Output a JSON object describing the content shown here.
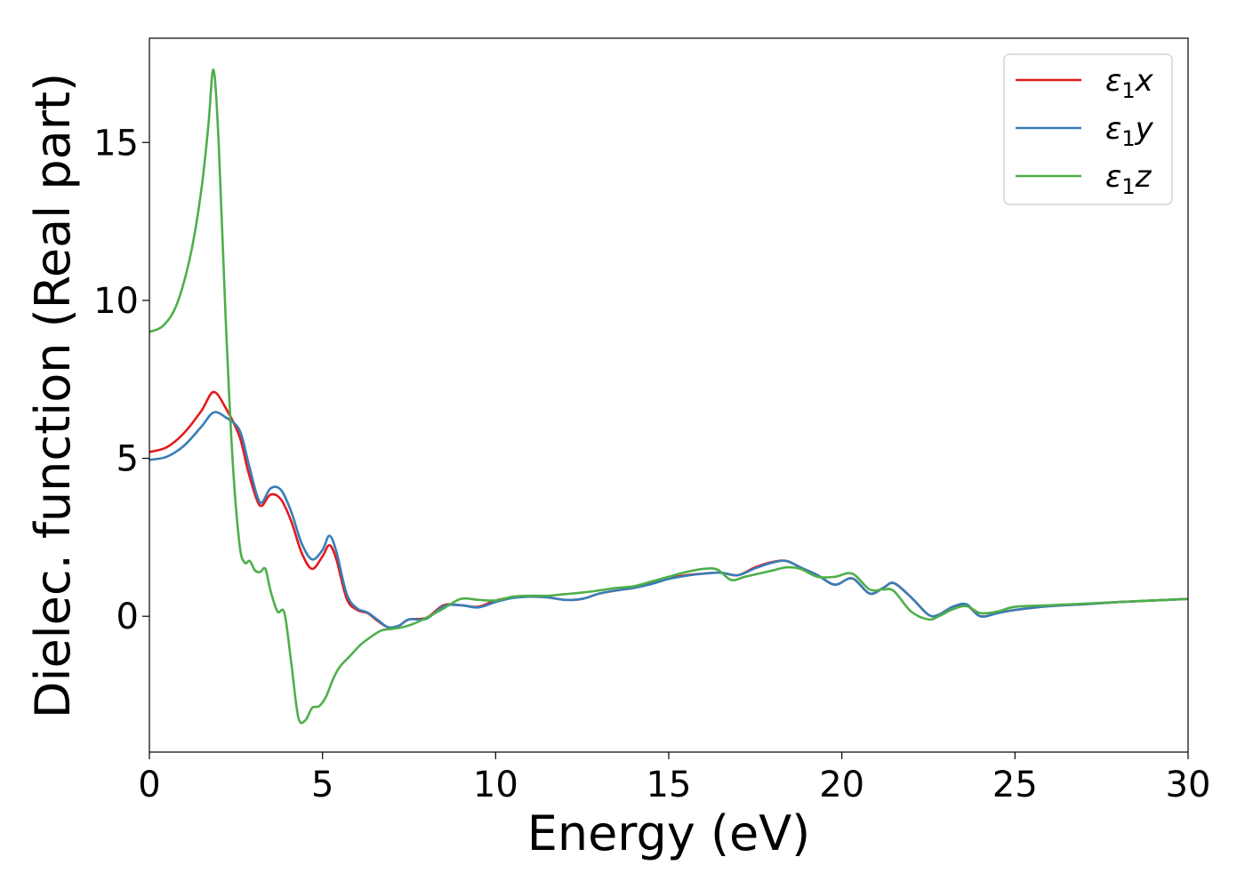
{
  "chart_data": {
    "type": "line",
    "xlabel": "Energy (eV)",
    "ylabel": "Dielec. function (Real part)",
    "xlim": [
      0,
      30
    ],
    "ylim": [
      -4.3,
      18.3
    ],
    "xticks": [
      0,
      5,
      10,
      15,
      20,
      25,
      30
    ],
    "yticks": [
      0,
      5,
      10,
      15
    ],
    "grid": false,
    "legend_position": "top-right",
    "series": [
      {
        "name": "ε₁x",
        "legend_main": "ε",
        "legend_sub": "1",
        "legend_suffix": "x",
        "color": "#e41a1c",
        "x": [
          0,
          0.5,
          1.0,
          1.5,
          1.85,
          2.2,
          2.6,
          2.85,
          3.1,
          3.25,
          3.5,
          3.8,
          4.1,
          4.4,
          4.7,
          5.0,
          5.2,
          5.4,
          5.7,
          6.0,
          6.3,
          6.6,
          6.9,
          7.2,
          7.5,
          8.0,
          8.5,
          9.0,
          9.5,
          10.0,
          10.5,
          11.0,
          11.5,
          12.0,
          12.5,
          13.0,
          13.5,
          14.0,
          14.5,
          15.0,
          15.5,
          16.0,
          16.5,
          17.0,
          17.5,
          18.0,
          18.4,
          18.8,
          19.3,
          19.8,
          20.3,
          20.8,
          21.2,
          21.5,
          22.0,
          22.5,
          22.8,
          23.2,
          23.6,
          24.0,
          24.5,
          25.0,
          26.0,
          27.0,
          28.0,
          29.0,
          30.0
        ],
        "values": [
          5.2,
          5.35,
          5.8,
          6.5,
          7.1,
          6.6,
          5.7,
          4.6,
          3.7,
          3.5,
          3.85,
          3.7,
          3.0,
          2.0,
          1.5,
          1.9,
          2.25,
          1.8,
          0.55,
          0.2,
          0.1,
          -0.15,
          -0.35,
          -0.3,
          -0.1,
          -0.05,
          0.35,
          0.35,
          0.3,
          0.5,
          0.6,
          0.62,
          0.6,
          0.52,
          0.55,
          0.72,
          0.82,
          0.9,
          1.05,
          1.2,
          1.3,
          1.35,
          1.38,
          1.3,
          1.55,
          1.72,
          1.75,
          1.55,
          1.3,
          1.0,
          1.2,
          0.72,
          0.9,
          1.05,
          0.6,
          0.05,
          0.05,
          0.3,
          0.35,
          0.0,
          0.1,
          0.2,
          0.32,
          0.38,
          0.45,
          0.5,
          0.55
        ]
      },
      {
        "name": "ε₁y",
        "legend_main": "ε",
        "legend_sub": "1",
        "legend_suffix": "y",
        "color": "#377eb8",
        "x": [
          0,
          0.5,
          1.0,
          1.5,
          1.85,
          2.2,
          2.6,
          2.85,
          3.1,
          3.25,
          3.5,
          3.8,
          4.1,
          4.4,
          4.7,
          5.0,
          5.2,
          5.4,
          5.7,
          6.0,
          6.3,
          6.6,
          6.9,
          7.2,
          7.5,
          8.0,
          8.5,
          9.0,
          9.5,
          10.0,
          10.5,
          11.0,
          11.5,
          12.0,
          12.5,
          13.0,
          13.5,
          14.0,
          14.5,
          15.0,
          15.5,
          16.0,
          16.5,
          17.0,
          17.5,
          18.0,
          18.4,
          18.8,
          19.3,
          19.8,
          20.3,
          20.8,
          21.2,
          21.5,
          22.0,
          22.5,
          22.8,
          23.2,
          23.6,
          24.0,
          24.5,
          25.0,
          26.0,
          27.0,
          28.0,
          29.0,
          30.0
        ],
        "values": [
          4.95,
          5.05,
          5.4,
          6.0,
          6.45,
          6.3,
          5.9,
          4.9,
          3.85,
          3.6,
          4.05,
          4.0,
          3.3,
          2.3,
          1.8,
          2.1,
          2.55,
          2.05,
          0.7,
          0.25,
          0.12,
          -0.12,
          -0.35,
          -0.3,
          -0.1,
          -0.08,
          0.32,
          0.35,
          0.28,
          0.45,
          0.58,
          0.62,
          0.6,
          0.52,
          0.55,
          0.72,
          0.82,
          0.9,
          1.02,
          1.18,
          1.28,
          1.35,
          1.38,
          1.3,
          1.52,
          1.7,
          1.75,
          1.55,
          1.3,
          1.0,
          1.2,
          0.72,
          0.9,
          1.05,
          0.6,
          0.05,
          0.05,
          0.3,
          0.38,
          0.0,
          0.1,
          0.2,
          0.32,
          0.38,
          0.45,
          0.5,
          0.55
        ]
      },
      {
        "name": "ε₁z",
        "legend_main": "ε",
        "legend_sub": "1",
        "legend_suffix": "z",
        "color": "#4daf4a",
        "x": [
          0,
          0.4,
          0.8,
          1.2,
          1.5,
          1.7,
          1.85,
          2.0,
          2.2,
          2.4,
          2.6,
          2.75,
          2.9,
          3.05,
          3.2,
          3.35,
          3.5,
          3.7,
          3.9,
          4.1,
          4.3,
          4.5,
          4.7,
          4.9,
          5.1,
          5.3,
          5.5,
          5.8,
          6.1,
          6.4,
          6.7,
          7.0,
          7.3,
          7.6,
          8.0,
          8.5,
          9.0,
          9.5,
          10.0,
          10.5,
          11.0,
          11.5,
          12.0,
          12.5,
          13.0,
          13.5,
          14.0,
          14.5,
          15.0,
          15.5,
          16.0,
          16.4,
          16.8,
          17.2,
          17.6,
          18.0,
          18.4,
          18.8,
          19.3,
          19.8,
          20.3,
          20.8,
          21.2,
          21.5,
          22.0,
          22.5,
          22.8,
          23.2,
          23.6,
          24.0,
          24.5,
          25.0,
          26.0,
          27.0,
          28.0,
          29.0,
          30.0
        ],
        "values": [
          9.0,
          9.2,
          9.9,
          11.5,
          13.5,
          15.5,
          17.3,
          15.0,
          9.5,
          5.0,
          2.3,
          1.7,
          1.75,
          1.45,
          1.4,
          1.5,
          0.8,
          0.15,
          0.1,
          -1.5,
          -3.2,
          -3.3,
          -2.9,
          -2.85,
          -2.55,
          -2.0,
          -1.6,
          -1.25,
          -0.9,
          -0.65,
          -0.45,
          -0.4,
          -0.35,
          -0.25,
          -0.05,
          0.25,
          0.55,
          0.52,
          0.5,
          0.62,
          0.65,
          0.65,
          0.7,
          0.75,
          0.82,
          0.9,
          0.95,
          1.1,
          1.25,
          1.4,
          1.5,
          1.48,
          1.15,
          1.25,
          1.35,
          1.45,
          1.55,
          1.5,
          1.25,
          1.25,
          1.35,
          0.85,
          0.85,
          0.8,
          0.15,
          -0.1,
          0.0,
          0.22,
          0.32,
          0.1,
          0.15,
          0.3,
          0.35,
          0.4,
          0.45,
          0.5,
          0.55
        ]
      }
    ]
  }
}
